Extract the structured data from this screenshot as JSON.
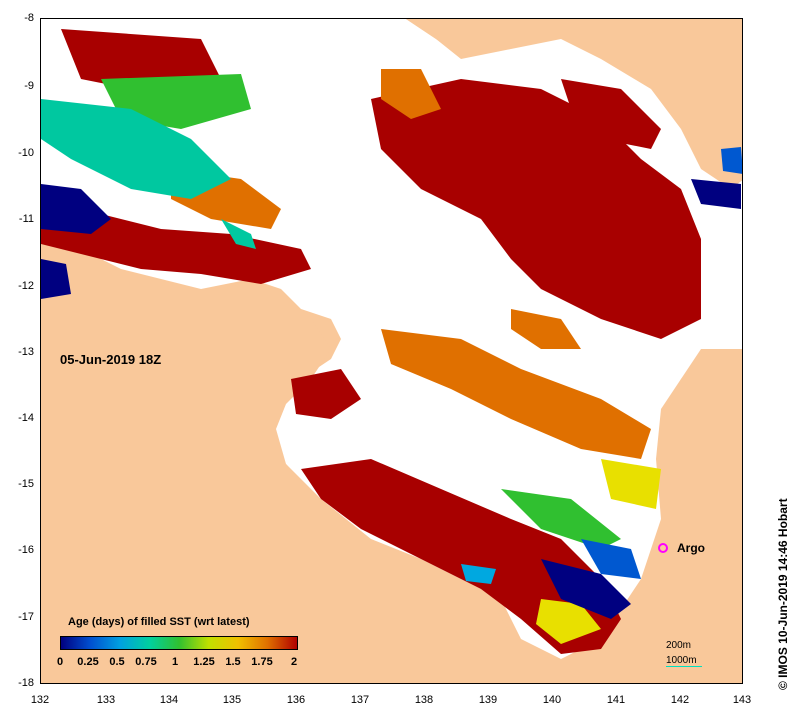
{
  "map": {
    "x_ticks": [
      "132",
      "133",
      "134",
      "135",
      "136",
      "137",
      "138",
      "139",
      "140",
      "141",
      "142",
      "143"
    ],
    "y_ticks": [
      "-8",
      "-9",
      "-10",
      "-11",
      "-12",
      "-13",
      "-14",
      "-15",
      "-16",
      "-17",
      "-18"
    ],
    "date_label": "05-Jun-2019 18Z",
    "argo_label": "Argo",
    "contour_200": "200m",
    "contour_1000": "1000m",
    "credit": "© IMOS 10-Jun-2019 14:46 Hobart",
    "land_color": "#f9c89a",
    "argo_color": "#ff00ff"
  },
  "colorbar": {
    "title": "Age (days) of filled SST (wrt latest)",
    "labels": [
      "0",
      "0.25",
      "0.5",
      "0.75",
      "1",
      "1.25",
      "1.5",
      "1.75",
      "2"
    ],
    "colors": [
      "#000080",
      "#0050d0",
      "#00a0e0",
      "#00d0a0",
      "#30c030",
      "#c0e000",
      "#f0c000",
      "#e07000",
      "#b00000"
    ]
  }
}
